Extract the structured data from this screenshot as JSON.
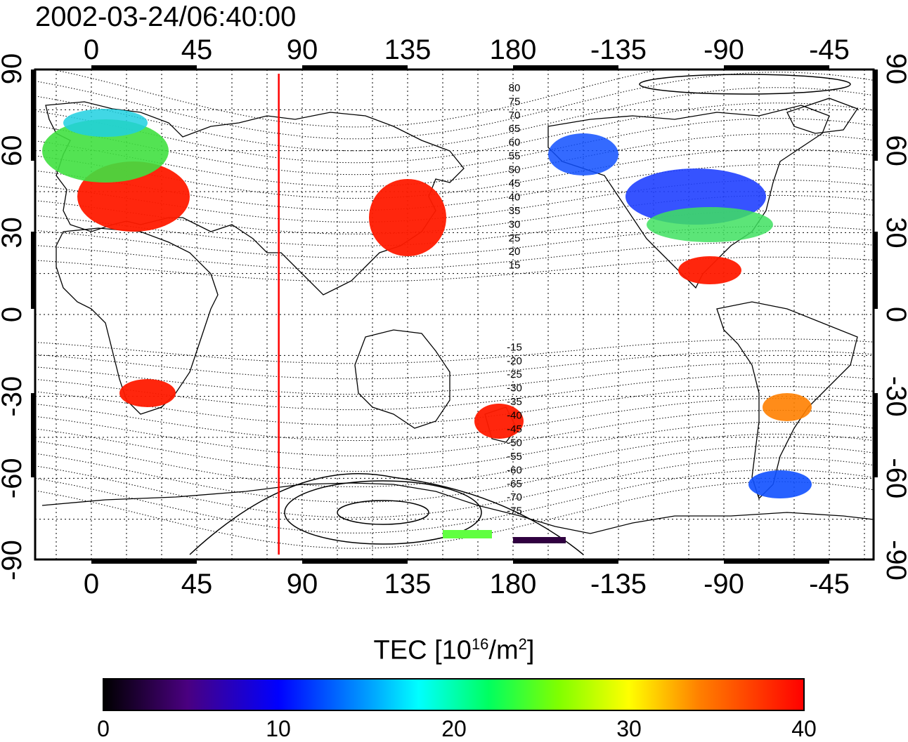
{
  "title": "2002-03-24/06:40:00",
  "colorbar": {
    "label_prefix": "TEC  [10",
    "label_exp": "16",
    "label_mid": "/m",
    "label_exp2": "2",
    "label_suffix": "]",
    "ticks": [
      "0",
      "10",
      "20",
      "30",
      "40"
    ],
    "range": [
      0,
      40
    ]
  },
  "map": {
    "top_lon_labels": [
      "0",
      "45",
      "90",
      "135",
      "180",
      "-135",
      "-90",
      "-45"
    ],
    "bottom_lon_labels": [
      "0",
      "45",
      "90",
      "135",
      "180",
      "-135",
      "-90",
      "-45"
    ],
    "lat_labels_left": [
      "90",
      "60",
      "30",
      "0",
      "-30",
      "-60",
      "-90"
    ],
    "lat_labels_right": [
      "90",
      "60",
      "30",
      "0",
      "-30",
      "-60",
      "-90"
    ],
    "lat_values": [
      90,
      60,
      30,
      0,
      -30,
      -60,
      -90
    ],
    "lon_values": [
      0,
      45,
      90,
      135,
      180,
      225,
      270,
      315
    ],
    "contour_labels": [
      "80",
      "75",
      "70",
      "65",
      "60",
      "55",
      "50",
      "45",
      "40",
      "35",
      "30",
      "25",
      "20",
      "15",
      "-15",
      "-20",
      "-25",
      "-30",
      "-35",
      "-40",
      "-45",
      "-50",
      "-55",
      "-60",
      "-65",
      "-70",
      "-75"
    ],
    "contour_values": [
      80,
      75,
      70,
      65,
      60,
      55,
      50,
      45,
      40,
      35,
      30,
      25,
      20,
      15,
      -15,
      -20,
      -25,
      -30,
      -35,
      -40,
      -45,
      -50,
      -55,
      -60,
      -65,
      -70,
      -75
    ],
    "terminator_lon": 80,
    "colors": {
      "terminator": "#ff0000",
      "coast": "#000000",
      "grid": "#000000"
    }
  }
}
